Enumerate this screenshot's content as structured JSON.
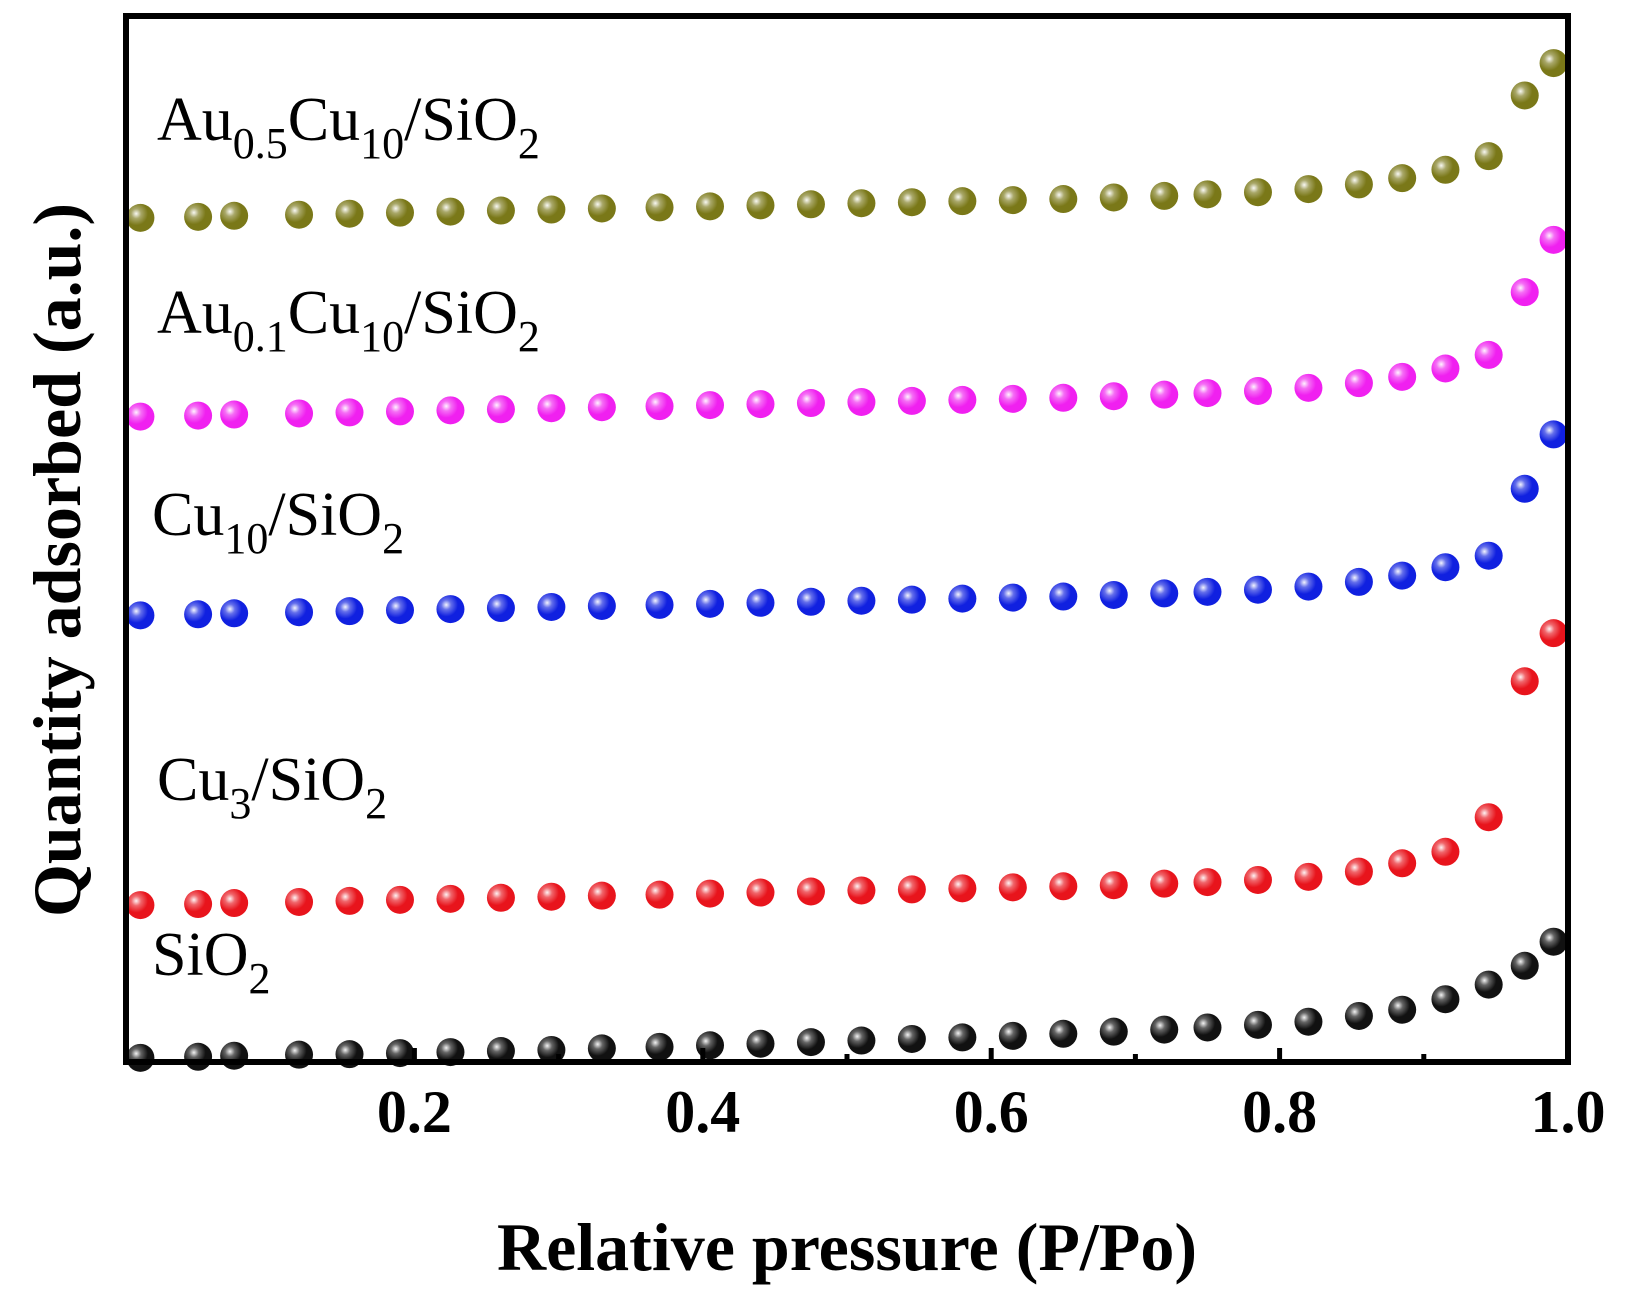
{
  "chart_data": {
    "type": "scatter",
    "title": "",
    "xlabel": "Relative pressure (P/Po)",
    "ylabel": "Quantity adsorbed (a.u.)",
    "xlim": [
      0.0,
      1.0
    ],
    "ylim": [
      0,
      100
    ],
    "x_ticks": [
      0.2,
      0.4,
      0.6,
      0.8,
      1.0
    ],
    "x_tick_labels": [
      "0.2",
      "0.4",
      "0.6",
      "0.8",
      "1.0"
    ],
    "grid": false,
    "legend": "inline labels",
    "x": [
      0.01,
      0.05,
      0.075,
      0.12,
      0.155,
      0.19,
      0.225,
      0.26,
      0.295,
      0.33,
      0.37,
      0.405,
      0.44,
      0.475,
      0.51,
      0.545,
      0.58,
      0.615,
      0.65,
      0.685,
      0.72,
      0.75,
      0.785,
      0.82,
      0.855,
      0.885,
      0.915,
      0.945,
      0.97,
      0.99
    ],
    "series": [
      {
        "name": "SiO2",
        "label_main": "SiO",
        "label_parts": [
          {
            "t": "SiO",
            "sub": false
          },
          {
            "t": "2",
            "sub": true
          }
        ],
        "color": "#111111",
        "values": [
          0.4,
          0.5,
          0.6,
          0.7,
          0.75,
          0.85,
          0.95,
          1.05,
          1.15,
          1.3,
          1.45,
          1.6,
          1.75,
          1.9,
          2.05,
          2.2,
          2.35,
          2.5,
          2.7,
          2.9,
          3.1,
          3.3,
          3.55,
          3.85,
          4.4,
          5.0,
          6.0,
          7.4,
          9.2,
          11.5
        ]
      },
      {
        "name": "Cu3/SiO2",
        "label_parts": [
          {
            "t": "Cu",
            "sub": false
          },
          {
            "t": "3",
            "sub": true
          },
          {
            "t": "/SiO",
            "sub": false
          },
          {
            "t": "2",
            "sub": true
          }
        ],
        "color": "#e8141c",
        "values": [
          15.0,
          15.1,
          15.2,
          15.3,
          15.4,
          15.5,
          15.6,
          15.7,
          15.8,
          15.9,
          16.0,
          16.1,
          16.2,
          16.3,
          16.4,
          16.5,
          16.6,
          16.7,
          16.8,
          16.9,
          17.05,
          17.2,
          17.4,
          17.7,
          18.2,
          19.0,
          20.1,
          23.4,
          36.4,
          41.0
        ]
      },
      {
        "name": "Cu10/SiO2",
        "label_parts": [
          {
            "t": "Cu",
            "sub": false
          },
          {
            "t": "10",
            "sub": true
          },
          {
            "t": "/SiO",
            "sub": false
          },
          {
            "t": "2",
            "sub": true
          }
        ],
        "color": "#1020e0",
        "values": [
          42.7,
          42.8,
          42.9,
          43.0,
          43.1,
          43.2,
          43.3,
          43.4,
          43.5,
          43.6,
          43.7,
          43.8,
          43.9,
          44.0,
          44.1,
          44.2,
          44.3,
          44.4,
          44.5,
          44.65,
          44.8,
          44.95,
          45.15,
          45.45,
          45.9,
          46.5,
          47.3,
          48.4,
          54.8,
          60.0
        ]
      },
      {
        "name": "Au0.1Cu10/SiO2",
        "label_parts": [
          {
            "t": "Au",
            "sub": false
          },
          {
            "t": "0.1",
            "sub": true
          },
          {
            "t": "Cu",
            "sub": false
          },
          {
            "t": "10",
            "sub": true
          },
          {
            "t": "/SiO",
            "sub": false
          },
          {
            "t": "2",
            "sub": true
          }
        ],
        "color": "#f020f0",
        "values": [
          61.7,
          61.8,
          61.9,
          62.0,
          62.1,
          62.2,
          62.3,
          62.4,
          62.5,
          62.6,
          62.7,
          62.8,
          62.9,
          63.0,
          63.1,
          63.2,
          63.3,
          63.4,
          63.5,
          63.65,
          63.8,
          63.95,
          64.15,
          64.45,
          64.9,
          65.5,
          66.3,
          67.6,
          73.6,
          78.6
        ]
      },
      {
        "name": "Au0.5Cu10/SiO2",
        "label_parts": [
          {
            "t": "Au",
            "sub": false
          },
          {
            "t": "0.5",
            "sub": true
          },
          {
            "t": "Cu",
            "sub": false
          },
          {
            "t": "10",
            "sub": true
          },
          {
            "t": "/SiO",
            "sub": false
          },
          {
            "t": "2",
            "sub": true
          }
        ],
        "color": "#7a7818",
        "values": [
          80.7,
          80.8,
          80.9,
          81.0,
          81.1,
          81.2,
          81.3,
          81.4,
          81.5,
          81.6,
          81.7,
          81.8,
          81.9,
          82.0,
          82.1,
          82.2,
          82.3,
          82.4,
          82.5,
          82.65,
          82.8,
          82.95,
          83.15,
          83.45,
          83.9,
          84.5,
          85.3,
          86.6,
          92.4,
          95.5
        ]
      }
    ]
  }
}
